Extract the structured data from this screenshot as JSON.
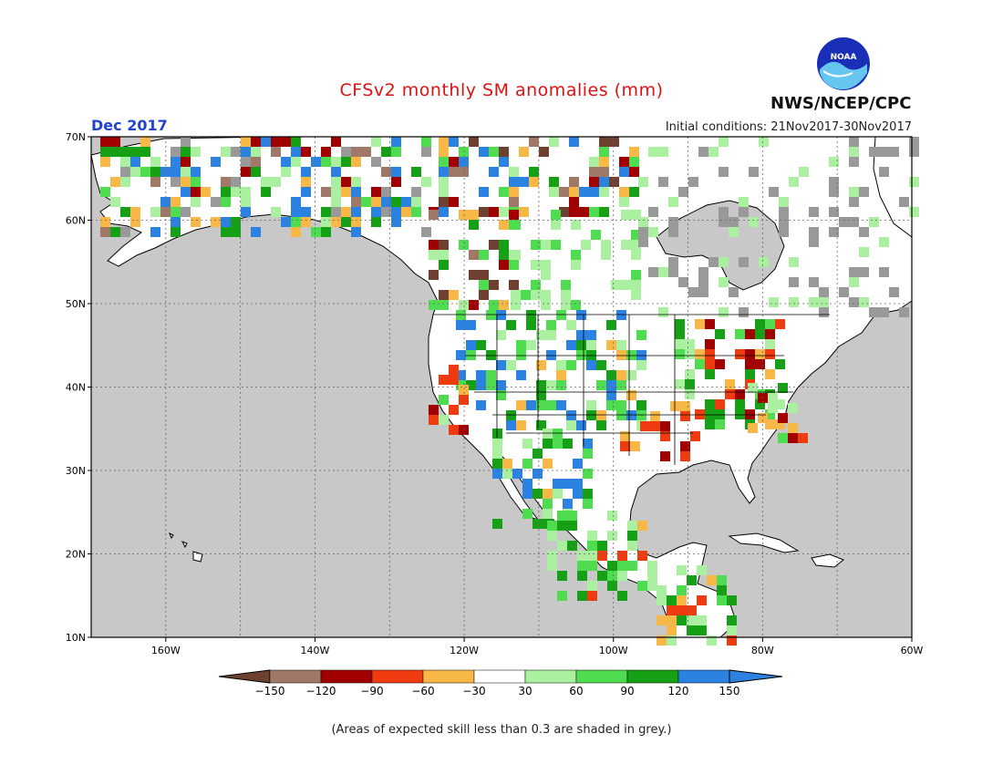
{
  "header": {
    "title": "CFSv2 monthly SM anomalies (mm)",
    "month": "Dec 2017",
    "initial_conditions": "Initial conditions: 21Nov2017-30Nov2017",
    "agency": "NWS/NCEP/CPC",
    "logo_text": "NOAA"
  },
  "map": {
    "lat_labels": [
      "70N",
      "60N",
      "50N",
      "40N",
      "30N",
      "20N",
      "10N"
    ],
    "lon_labels": [
      "160W",
      "140W",
      "120W",
      "100W",
      "80W",
      "60W"
    ],
    "lat_range": [
      10,
      70
    ],
    "lon_range": [
      -170,
      -60
    ],
    "ocean_color": "#c8c8c8",
    "land_color": "#ffffff",
    "grid": true
  },
  "colorbar": {
    "labels": [
      "-150",
      "-120",
      "-90",
      "-60",
      "-30",
      "30",
      "60",
      "90",
      "120",
      "150"
    ],
    "colors": [
      "#6e4030",
      "#a07868",
      "#a00000",
      "#ee3c10",
      "#f8b848",
      "#ffffff",
      "#aaf0a0",
      "#50dc50",
      "#16a016",
      "#2c82e0",
      "#2c82e0"
    ]
  },
  "footnote": "(Areas of expected skill less than 0.3 are shaded in grey.)"
}
